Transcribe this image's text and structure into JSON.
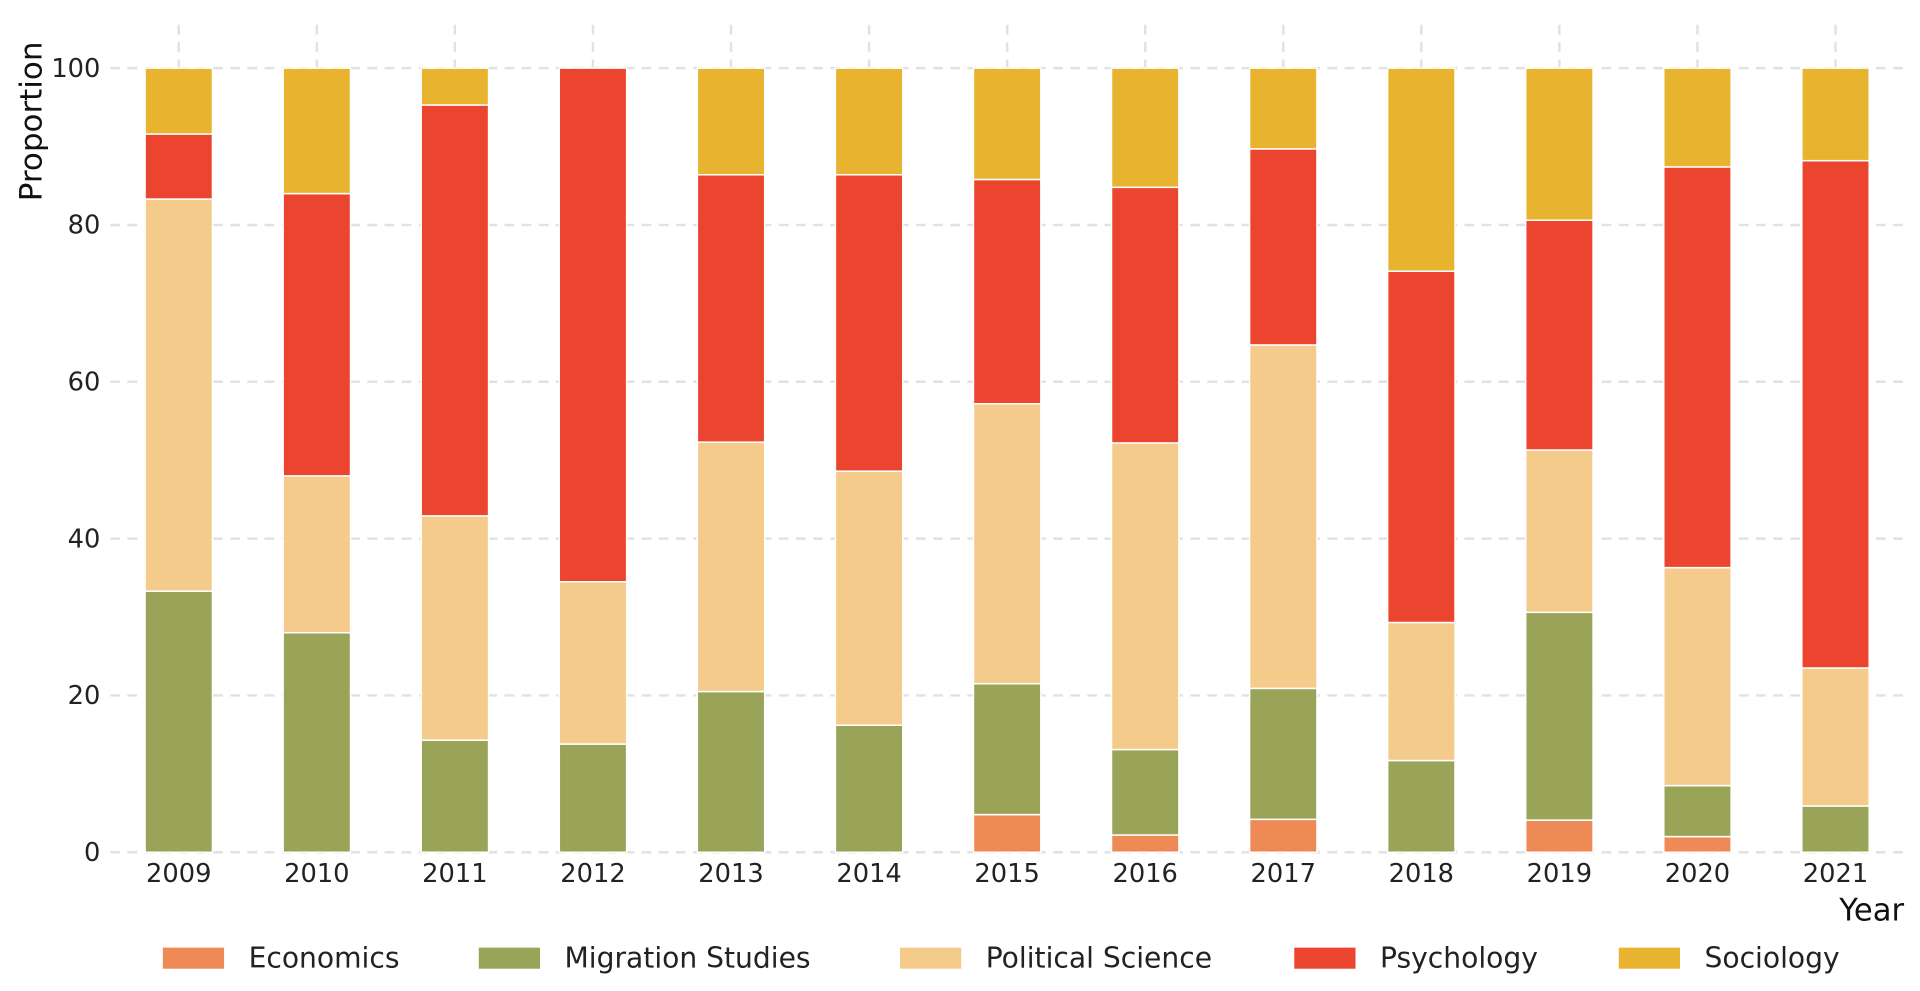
{
  "chart_data": {
    "type": "bar",
    "stacked": true,
    "title": "",
    "xlabel": "Year",
    "ylabel": "Proportion",
    "ylim": [
      0,
      100
    ],
    "yticks": [
      0,
      20,
      40,
      60,
      80,
      100
    ],
    "grid": true,
    "legend_position": "bottom",
    "categories": [
      "2009",
      "2010",
      "2011",
      "2012",
      "2013",
      "2014",
      "2015",
      "2016",
      "2017",
      "2018",
      "2019",
      "2020",
      "2021"
    ],
    "series": [
      {
        "name": "Economics",
        "color": "#EE8A55",
        "values": [
          0,
          0,
          0,
          0,
          0,
          0,
          4.8,
          2.2,
          4.2,
          0,
          4.1,
          2.0,
          0
        ]
      },
      {
        "name": "Migration Studies",
        "color": "#9AA459",
        "values": [
          33.3,
          28.0,
          14.3,
          13.8,
          20.5,
          16.2,
          16.7,
          10.9,
          16.7,
          11.7,
          26.5,
          6.5,
          5.9
        ]
      },
      {
        "name": "Political Science",
        "color": "#F4CB8A",
        "values": [
          50.0,
          20.0,
          28.6,
          20.7,
          31.8,
          32.4,
          35.7,
          39.1,
          43.8,
          17.6,
          20.7,
          27.8,
          17.6
        ]
      },
      {
        "name": "Psychology",
        "color": "#EB4530",
        "values": [
          8.3,
          36.0,
          52.4,
          65.5,
          34.1,
          37.8,
          28.6,
          32.6,
          25.0,
          44.8,
          29.3,
          51.1,
          64.7
        ]
      },
      {
        "name": "Sociology",
        "color": "#E8B32E",
        "values": [
          8.4,
          16.0,
          4.7,
          0,
          13.6,
          13.6,
          14.2,
          15.2,
          10.3,
          25.9,
          19.4,
          12.6,
          11.8
        ]
      }
    ]
  }
}
